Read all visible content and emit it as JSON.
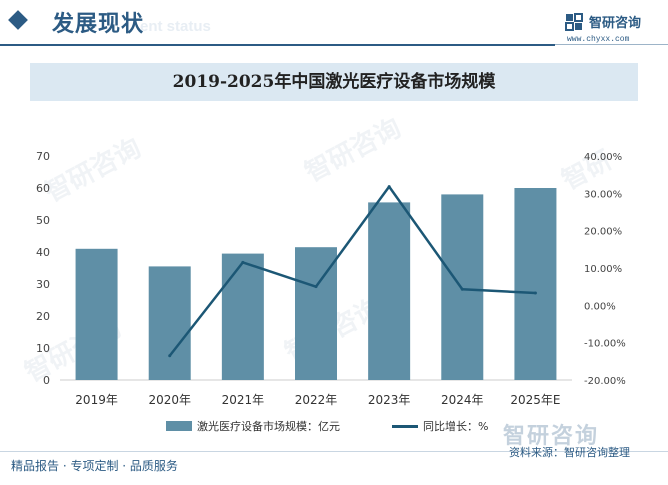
{
  "header": {
    "section_title": "发展现状",
    "section_title_en": "ent status",
    "brand_name": "智研咨询",
    "brand_url": "www.chyxx.com"
  },
  "chart_data": {
    "type": "bar",
    "title": "2019-2025年中国激光医疗设备市场规模",
    "categories": [
      "2019年",
      "2020年",
      "2021年",
      "2022年",
      "2023年",
      "2024年",
      "2025年E"
    ],
    "series": [
      {
        "name": "激光医疗设备市场规模：亿元",
        "type": "bar",
        "axis": "left",
        "color": "#5f8fa6",
        "values": [
          41,
          35.5,
          39.5,
          41.5,
          55.5,
          58,
          60
        ]
      },
      {
        "name": "同比增长：%",
        "type": "line",
        "axis": "right",
        "color": "#1c5775",
        "values": [
          null,
          -13.5,
          11.5,
          5.0,
          31.8,
          4.3,
          3.3
        ]
      }
    ],
    "y_left": {
      "min": 0,
      "max": 70,
      "ticks": [
        "0",
        "10",
        "20",
        "30",
        "40",
        "50",
        "60",
        "70"
      ]
    },
    "y_right": {
      "min": -20,
      "max": 40,
      "ticks": [
        "-20.00%",
        "-10.00%",
        "0.00%",
        "10.00%",
        "20.00%",
        "30.00%",
        "40.00%"
      ]
    },
    "grid": false,
    "legend": "bottom"
  },
  "footer": {
    "left_text": "精品报告 · 专项定制 · 品质服务",
    "source_text": "资料来源：智研咨询整理",
    "watermark_bottom": "智研咨询"
  }
}
